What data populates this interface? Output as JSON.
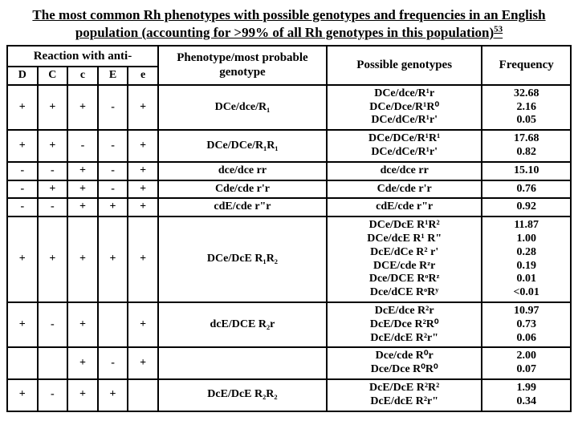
{
  "title": {
    "line1": "The most common Rh phenotypes with possible genotypes and frequencies in an English",
    "line2": "population (accounting for >99% of all Rh genotypes in this population)",
    "ref": "53"
  },
  "headers": {
    "reaction": "Reaction with anti-",
    "cols": [
      "D",
      "C",
      "c",
      "E",
      "e"
    ],
    "phenotype": "Phenotype/most probable genotype",
    "genotypes": "Possible genotypes",
    "frequency": "Frequency"
  },
  "rows": [
    {
      "r": [
        "+",
        "+",
        "+",
        "-",
        "+"
      ],
      "pheno": "DCe/dce/R₁",
      "geno": "DCe/dce/R¹r\nDCe/Dce/R¹R⁰\nDCe/dCe/R¹r'",
      "freq": "32.68\n2.16\n0.05"
    },
    {
      "r": [
        "+",
        "+",
        "-",
        "-",
        "+"
      ],
      "pheno": "DCe/DCe/R₁R₁",
      "geno": "DCe/DCe/R¹R¹\nDCe/dCe/R¹r'",
      "freq": "17.68\n0.82"
    },
    {
      "r": [
        "-",
        "-",
        "+",
        "-",
        "+"
      ],
      "pheno": "dce/dce rr",
      "geno": "dce/dce rr",
      "freq": "15.10"
    },
    {
      "r": [
        "-",
        "+",
        "+",
        "-",
        "+"
      ],
      "pheno": "Cde/cde r'r",
      "geno": "Cde/cde r'r",
      "freq": "0.76"
    },
    {
      "r": [
        "-",
        "-",
        "+",
        "+",
        "+"
      ],
      "pheno": "cdE/cde r\"r",
      "geno": "cdE/cde r\"r",
      "freq": "0.92"
    },
    {
      "r": [
        "+",
        "+",
        "+",
        "+",
        "+"
      ],
      "pheno": "DCe/DcE R₁R₂",
      "geno": "DCe/DcE R¹R²\nDCe/dcE R¹ R\"\nDcE/dCe R² r'\nDCE/cde Rᶻr\nDce/DCE RᵒRᶻ\nDce/dCE RᵒRʸ",
      "freq": "11.87\n1.00\n0.28\n0.19\n0.01\n<0.01"
    },
    {
      "r": [
        "+",
        "-",
        "+",
        "",
        "+"
      ],
      "pheno": "dcE/DCE R₂r",
      "geno": "DcE/dce R²r\nDcE/Dce R²R⁰\nDcE/dcE R²r\"",
      "freq": "10.97\n0.73\n0.06"
    },
    {
      "r": [
        "",
        "",
        "+",
        "-",
        "+"
      ],
      "pheno": "",
      "geno": "Dce/cde R⁰r\nDce/Dce R⁰R⁰",
      "freq": "2.00\n0.07"
    },
    {
      "r": [
        "+",
        "-",
        "+",
        "+",
        ""
      ],
      "pheno": "DcE/DcE R₂R₂",
      "geno": "DcE/DcE R²R²\nDcE/dcE R²r\"",
      "freq": "1.99\n0.34"
    }
  ]
}
